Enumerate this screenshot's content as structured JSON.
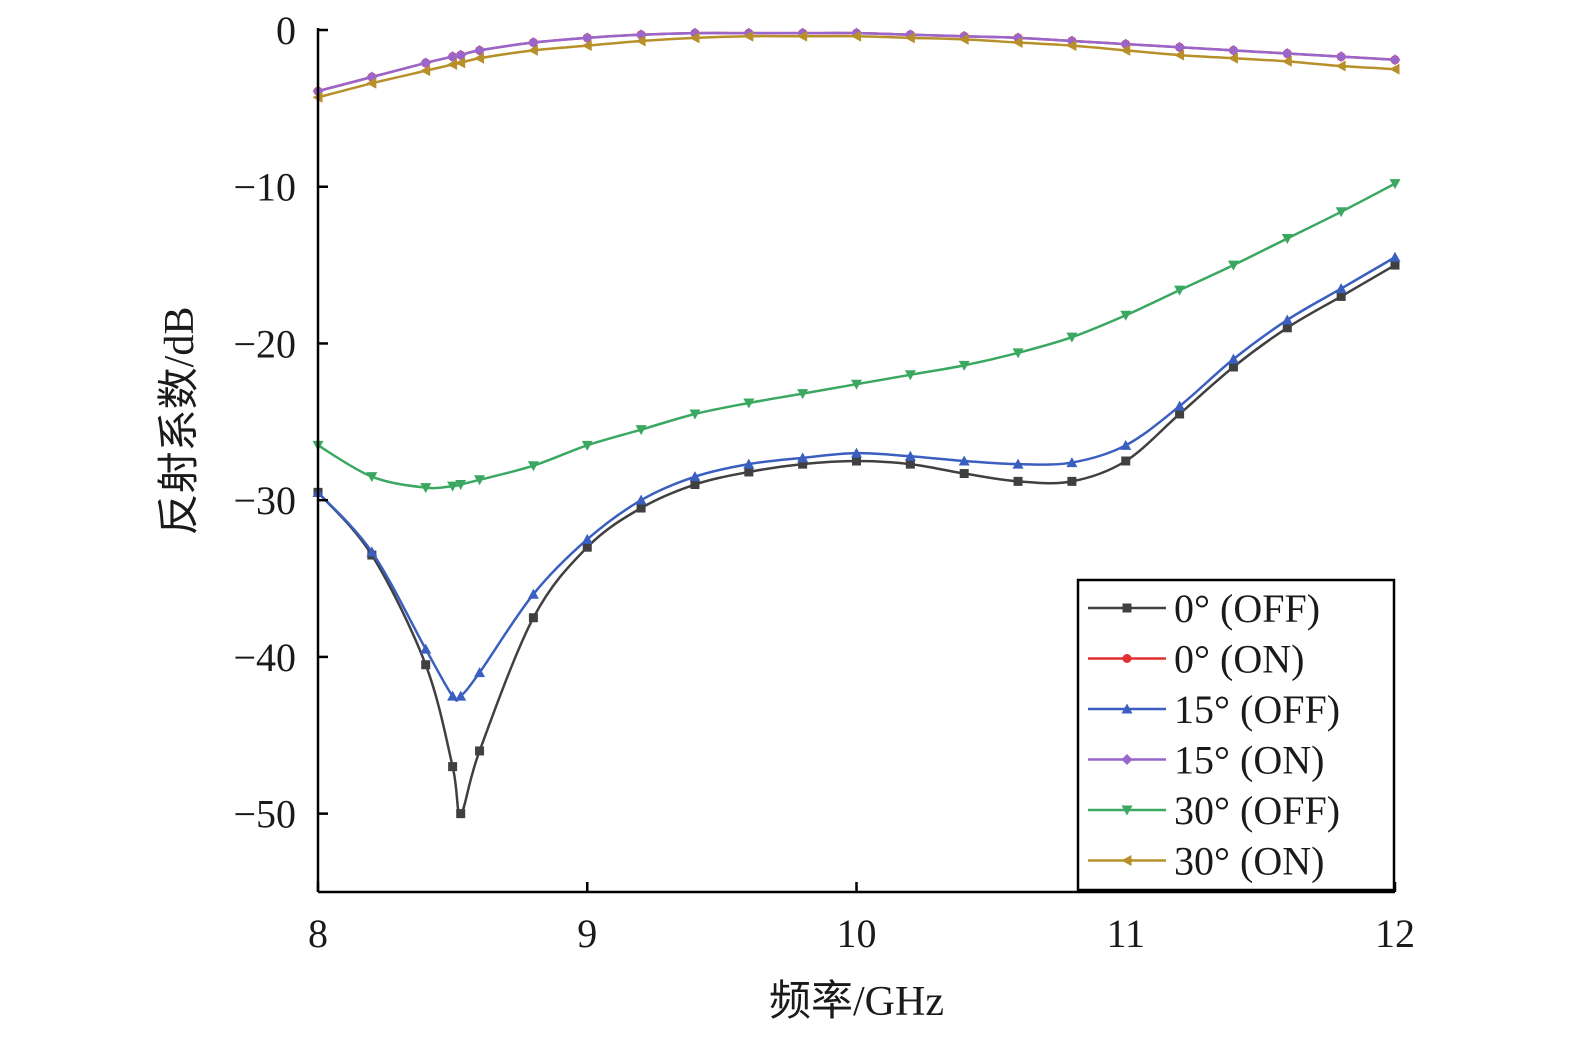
{
  "chart_data": {
    "type": "line",
    "title": "",
    "xlabel": "频率/GHz",
    "ylabel": "反射系数/dB",
    "xlim": [
      8,
      12
    ],
    "ylim": [
      -55,
      0
    ],
    "xticks": [
      8,
      9,
      10,
      11,
      12
    ],
    "yticks": [
      0,
      -10,
      -20,
      -30,
      -40,
      -50
    ],
    "xtick_labels": [
      "8",
      "9",
      "10",
      "11",
      "12"
    ],
    "ytick_labels": [
      "0",
      "−10",
      "−20",
      "−30",
      "−40",
      "−50"
    ],
    "grid": false,
    "legend_position": "bottom-right",
    "x": [
      8.0,
      8.2,
      8.4,
      8.5,
      8.53,
      8.6,
      8.8,
      9.0,
      9.2,
      9.4,
      9.6,
      9.8,
      10.0,
      10.2,
      10.4,
      10.6,
      10.8,
      11.0,
      11.2,
      11.4,
      11.6,
      11.8,
      12.0
    ],
    "series": [
      {
        "name": "0° (OFF)",
        "color": "#404040",
        "marker": "square",
        "values": [
          -29.5,
          -33.5,
          -40.5,
          -47.0,
          -50.0,
          -46.0,
          -37.5,
          -33.0,
          -30.5,
          -29.0,
          -28.2,
          -27.7,
          -27.5,
          -27.7,
          -28.3,
          -28.8,
          -28.8,
          -27.5,
          -24.5,
          -21.5,
          -19.0,
          -17.0,
          -15.0
        ]
      },
      {
        "name": "0° (ON)",
        "color": "#e03030",
        "marker": "circle",
        "values": [
          -3.9,
          -3.0,
          -2.1,
          -1.7,
          -1.6,
          -1.3,
          -0.8,
          -0.5,
          -0.3,
          -0.2,
          -0.2,
          -0.2,
          -0.2,
          -0.3,
          -0.4,
          -0.5,
          -0.7,
          -0.9,
          -1.1,
          -1.3,
          -1.5,
          -1.7,
          -1.9
        ]
      },
      {
        "name": "15° (OFF)",
        "color": "#3a5fbf",
        "marker": "triangle-up",
        "values": [
          -29.5,
          -33.3,
          -39.5,
          -42.5,
          -42.5,
          -41.0,
          -36.0,
          -32.5,
          -30.0,
          -28.5,
          -27.7,
          -27.3,
          -27.0,
          -27.2,
          -27.5,
          -27.7,
          -27.6,
          -26.5,
          -24.0,
          -21.0,
          -18.5,
          -16.5,
          -14.5
        ]
      },
      {
        "name": "15° (ON)",
        "color": "#9966cc",
        "marker": "diamond",
        "values": [
          -3.9,
          -3.0,
          -2.1,
          -1.7,
          -1.6,
          -1.3,
          -0.8,
          -0.5,
          -0.3,
          -0.2,
          -0.2,
          -0.2,
          -0.2,
          -0.3,
          -0.4,
          -0.5,
          -0.7,
          -0.9,
          -1.1,
          -1.3,
          -1.5,
          -1.7,
          -1.9
        ]
      },
      {
        "name": "30° (OFF)",
        "color": "#3aa860",
        "marker": "triangle-down",
        "values": [
          -26.5,
          -28.5,
          -29.2,
          -29.1,
          -29.0,
          -28.7,
          -27.8,
          -26.5,
          -25.5,
          -24.5,
          -23.8,
          -23.2,
          -22.6,
          -22.0,
          -21.4,
          -20.6,
          -19.6,
          -18.2,
          -16.6,
          -15.0,
          -13.3,
          -11.6,
          -9.8
        ]
      },
      {
        "name": "30° (ON)",
        "color": "#b8902a",
        "marker": "triangle-left",
        "values": [
          -4.3,
          -3.4,
          -2.6,
          -2.2,
          -2.1,
          -1.8,
          -1.3,
          -1.0,
          -0.7,
          -0.5,
          -0.4,
          -0.4,
          -0.4,
          -0.5,
          -0.6,
          -0.8,
          -1.0,
          -1.3,
          -1.6,
          -1.8,
          -2.0,
          -2.3,
          -2.5
        ]
      }
    ]
  }
}
